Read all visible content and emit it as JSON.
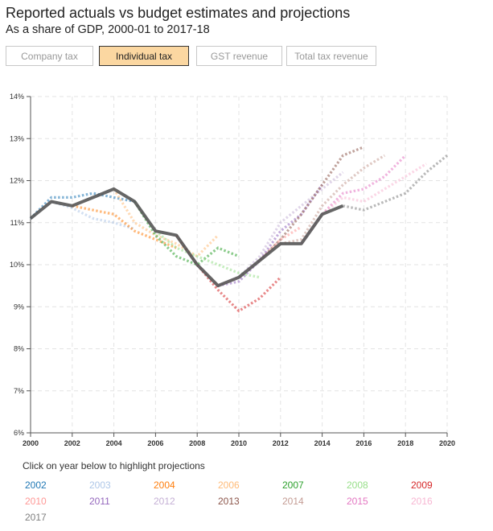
{
  "header": {
    "title": "Reported actuals vs budget estimates and projections",
    "subtitle": "As a share of GDP, 2000-01 to 2017-18"
  },
  "tabs": [
    {
      "label": "Company tax",
      "active": false
    },
    {
      "label": "Individual tax",
      "active": true
    },
    {
      "label": "GST revenue",
      "active": false
    },
    {
      "label": "Total tax revenue",
      "active": false
    }
  ],
  "legend_hint": "Click on year below to highlight projections",
  "colors": {
    "actual": "#555555",
    "2002": "#1f77b4",
    "2003": "#aec7e8",
    "2004": "#ff7f0e",
    "2006": "#ffbb78",
    "2007": "#2ca02c",
    "2008": "#98df8a",
    "2009": "#d62728",
    "2010": "#ff9896",
    "2011": "#9467bd",
    "2012": "#c5b0d5",
    "2013": "#8c564b",
    "2014": "#c49c94",
    "2015": "#e377c2",
    "2016": "#f7b6d2",
    "2017": "#7f7f7f"
  },
  "chart_data": {
    "type": "line",
    "title": "Reported actuals vs budget estimates and projections",
    "xlabel": "",
    "ylabel": "",
    "xlim": [
      2000,
      2020
    ],
    "ylim": [
      6,
      14
    ],
    "x_ticks": [
      "2000",
      "2002",
      "2004",
      "2006",
      "2008",
      "2010",
      "2012",
      "2014",
      "2016",
      "2018",
      "2020"
    ],
    "y_ticks": [
      "6%",
      "7%",
      "8%",
      "9%",
      "10%",
      "11%",
      "12%",
      "13%",
      "14%"
    ],
    "grid": true,
    "actuals": {
      "name": "Actual",
      "x": [
        2000,
        2001,
        2002,
        2003,
        2004,
        2005,
        2006,
        2007,
        2008,
        2009,
        2010,
        2011,
        2012,
        2013,
        2014,
        2015
      ],
      "y": [
        11.1,
        11.5,
        11.4,
        11.6,
        11.8,
        11.5,
        10.8,
        10.7,
        10.0,
        9.5,
        9.7,
        10.1,
        10.5,
        10.5,
        11.2,
        11.4
      ]
    },
    "series": [
      {
        "name": "2002",
        "x": [
          2000,
          2001,
          2002,
          2003,
          2004,
          2005
        ],
        "y": [
          11.1,
          11.6,
          11.6,
          11.7,
          11.6,
          11.5
        ]
      },
      {
        "name": "2003",
        "x": [
          2001,
          2002,
          2003,
          2004,
          2005
        ],
        "y": [
          11.5,
          11.35,
          11.1,
          11.0,
          10.85
        ]
      },
      {
        "name": "2004",
        "x": [
          2002,
          2003,
          2004,
          2005,
          2006,
          2007
        ],
        "y": [
          11.4,
          11.3,
          11.2,
          10.8,
          10.6,
          10.4
        ]
      },
      {
        "name": "2006",
        "x": [
          2004,
          2005,
          2006,
          2007,
          2008,
          2009
        ],
        "y": [
          11.8,
          11.0,
          10.7,
          10.5,
          10.2,
          10.7
        ]
      },
      {
        "name": "2007",
        "x": [
          2005,
          2006,
          2007,
          2008,
          2009,
          2010
        ],
        "y": [
          11.5,
          10.7,
          10.2,
          10.0,
          10.4,
          10.2
        ]
      },
      {
        "name": "2008",
        "x": [
          2006,
          2007,
          2008,
          2009,
          2010,
          2011
        ],
        "y": [
          10.8,
          10.4,
          10.2,
          10.0,
          9.8,
          9.7
        ]
      },
      {
        "name": "2009",
        "x": [
          2007,
          2008,
          2009,
          2010,
          2011,
          2012
        ],
        "y": [
          10.7,
          10.0,
          9.4,
          8.9,
          9.2,
          9.7
        ]
      },
      {
        "name": "2010",
        "x": [
          2008,
          2009,
          2010,
          2011,
          2012,
          2013
        ],
        "y": [
          10.0,
          9.5,
          9.7,
          10.1,
          10.6,
          10.9
        ]
      },
      {
        "name": "2011",
        "x": [
          2009,
          2010,
          2011,
          2012,
          2013,
          2014
        ],
        "y": [
          9.5,
          9.6,
          10.1,
          10.8,
          11.2,
          11.9
        ]
      },
      {
        "name": "2012",
        "x": [
          2010,
          2011,
          2012,
          2013,
          2014,
          2015
        ],
        "y": [
          9.7,
          10.2,
          11.0,
          11.4,
          11.8,
          12.2
        ]
      },
      {
        "name": "2013",
        "x": [
          2011,
          2012,
          2013,
          2014,
          2015,
          2016
        ],
        "y": [
          10.1,
          10.6,
          11.2,
          11.9,
          12.6,
          12.8
        ]
      },
      {
        "name": "2014",
        "x": [
          2012,
          2013,
          2014,
          2015,
          2016,
          2017
        ],
        "y": [
          10.5,
          10.6,
          11.4,
          11.9,
          12.3,
          12.6
        ]
      },
      {
        "name": "2015",
        "x": [
          2013,
          2014,
          2015,
          2016,
          2017,
          2018
        ],
        "y": [
          10.5,
          11.2,
          11.7,
          11.8,
          12.1,
          12.6
        ]
      },
      {
        "name": "2016",
        "x": [
          2014,
          2015,
          2016,
          2017,
          2018,
          2019
        ],
        "y": [
          11.2,
          11.6,
          11.5,
          11.8,
          12.1,
          12.4
        ]
      },
      {
        "name": "2017",
        "x": [
          2015,
          2016,
          2017,
          2018,
          2019,
          2020
        ],
        "y": [
          11.4,
          11.3,
          11.5,
          11.7,
          12.2,
          12.6
        ]
      }
    ]
  },
  "legend": [
    "2002",
    "2003",
    "2004",
    "2006",
    "2007",
    "2008",
    "2009",
    "2010",
    "2011",
    "2012",
    "2013",
    "2014",
    "2015",
    "2016",
    "2017"
  ]
}
